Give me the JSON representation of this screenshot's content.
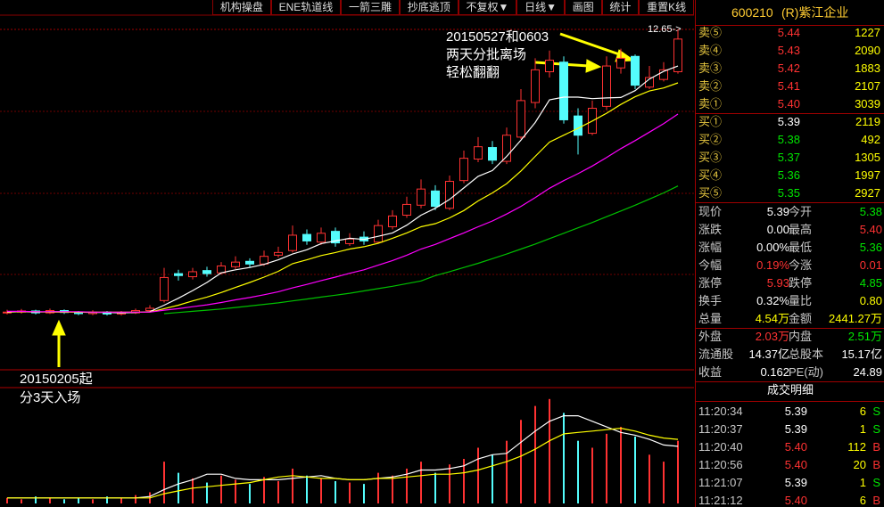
{
  "toolbar": [
    "机构操盘",
    "ENE轨道线",
    "一箭三雕",
    "抄底逃顶",
    "不复权▼",
    "日线▼",
    "画图",
    "统计",
    "重置K线"
  ],
  "kline": {
    "type": "candlestick",
    "ylim": [
      3.8,
      13.3
    ],
    "up_color": "#ff3232",
    "down_color": "#54fcfc",
    "open": [
      5.28,
      5.3,
      5.33,
      5.28,
      5.34,
      5.29,
      5.26,
      5.3,
      5.25,
      5.28,
      5.34,
      5.6,
      6.3,
      6.22,
      6.38,
      6.32,
      6.48,
      6.62,
      6.55,
      6.78,
      6.9,
      7.32,
      7.12,
      7.4,
      7.08,
      7.25,
      7.12,
      7.52,
      7.82,
      8.08,
      8.45,
      8.0,
      8.72,
      9.28,
      9.58,
      9.22,
      9.85,
      10.75,
      11.55,
      11.8,
      10.4,
      9.95,
      10.65,
      11.65,
      11.95,
      11.15,
      11.35,
      11.55
    ],
    "high": [
      5.36,
      5.38,
      5.36,
      5.39,
      5.37,
      5.33,
      5.35,
      5.33,
      5.33,
      5.39,
      5.48,
      6.45,
      6.4,
      6.45,
      6.48,
      6.6,
      6.75,
      6.7,
      6.9,
      7.0,
      7.55,
      7.45,
      7.5,
      7.5,
      7.35,
      7.4,
      7.7,
      7.95,
      8.3,
      8.75,
      8.6,
      8.85,
      9.5,
      9.85,
      9.75,
      10.1,
      11.1,
      11.9,
      12.1,
      11.95,
      10.6,
      10.8,
      11.95,
      12.15,
      12.0,
      11.7,
      11.8,
      12.65
    ],
    "low": [
      5.24,
      5.26,
      5.24,
      5.25,
      5.25,
      5.22,
      5.22,
      5.21,
      5.21,
      5.25,
      5.32,
      5.55,
      6.12,
      6.15,
      6.22,
      6.28,
      6.42,
      6.45,
      6.5,
      6.72,
      6.85,
      7.05,
      7.05,
      7.0,
      7.02,
      7.05,
      7.08,
      7.45,
      7.75,
      8.0,
      7.95,
      7.95,
      8.65,
      9.2,
      9.15,
      9.15,
      9.8,
      10.6,
      11.4,
      10.2,
      9.4,
      9.9,
      10.55,
      11.5,
      11.1,
      11.1,
      11.3,
      11.5
    ],
    "close": [
      5.3,
      5.33,
      5.28,
      5.34,
      5.29,
      5.26,
      5.3,
      5.25,
      5.28,
      5.34,
      5.4,
      6.2,
      6.25,
      6.35,
      6.3,
      6.5,
      6.6,
      6.55,
      6.75,
      6.85,
      7.3,
      7.15,
      7.35,
      7.1,
      7.2,
      7.15,
      7.55,
      7.8,
      8.1,
      8.5,
      8.05,
      8.7,
      9.3,
      9.6,
      9.25,
      9.9,
      10.8,
      11.6,
      11.85,
      10.3,
      9.9,
      10.6,
      11.7,
      11.9,
      11.2,
      11.4,
      11.6,
      12.4
    ],
    "ma": [
      {
        "color": "#ffffff",
        "values": [
          5.3,
          5.31,
          5.3,
          5.31,
          5.31,
          5.3,
          5.29,
          5.29,
          5.28,
          5.29,
          5.31,
          5.48,
          5.66,
          5.86,
          6.07,
          6.32,
          6.4,
          6.46,
          6.54,
          6.66,
          6.81,
          6.92,
          7.08,
          7.15,
          7.22,
          7.19,
          7.27,
          7.36,
          7.56,
          7.82,
          8.0,
          8.23,
          8.53,
          8.83,
          8.98,
          9.35,
          9.77,
          10.23,
          10.82,
          10.89,
          10.89,
          10.85,
          10.87,
          10.88,
          11.06,
          11.36,
          11.56,
          11.7
        ]
      },
      {
        "color": "#ffff00",
        "values": [
          5.31,
          5.31,
          5.31,
          5.3,
          5.3,
          5.3,
          5.3,
          5.3,
          5.3,
          5.3,
          5.3,
          5.39,
          5.48,
          5.59,
          5.69,
          5.81,
          5.94,
          6.07,
          6.21,
          6.36,
          6.56,
          6.66,
          6.77,
          6.85,
          6.94,
          7.0,
          7.09,
          7.22,
          7.36,
          7.52,
          7.6,
          7.75,
          7.94,
          8.19,
          8.4,
          8.64,
          8.97,
          9.35,
          9.72,
          9.9,
          10.08,
          10.27,
          10.47,
          10.7,
          10.9,
          11.05,
          11.13,
          11.26
        ]
      },
      {
        "color": "#ff00ff",
        "values": [
          5.32,
          5.32,
          5.31,
          5.31,
          5.31,
          5.31,
          5.3,
          5.3,
          5.3,
          5.3,
          5.3,
          5.35,
          5.39,
          5.44,
          5.49,
          5.55,
          5.62,
          5.68,
          5.75,
          5.83,
          5.93,
          6.02,
          6.12,
          6.21,
          6.31,
          6.4,
          6.52,
          6.64,
          6.78,
          6.94,
          7.06,
          7.21,
          7.36,
          7.52,
          7.67,
          7.85,
          8.05,
          8.28,
          8.52,
          8.72,
          8.9,
          9.1,
          9.32,
          9.55,
          9.76,
          9.98,
          10.2,
          10.45
        ]
      },
      {
        "color": "#00c000",
        "values": [
          null,
          null,
          null,
          null,
          null,
          null,
          null,
          null,
          null,
          null,
          null,
          5.26,
          5.29,
          5.32,
          5.35,
          5.38,
          5.42,
          5.46,
          5.5,
          5.54,
          5.59,
          5.64,
          5.69,
          5.74,
          5.79,
          5.85,
          5.91,
          5.97,
          6.04,
          6.11,
          6.25,
          6.35,
          6.46,
          6.57,
          6.69,
          6.81,
          6.94,
          7.07,
          7.21,
          7.35,
          7.49,
          7.63,
          7.78,
          7.93,
          8.08,
          8.24,
          8.4,
          8.58
        ]
      }
    ],
    "max_label": {
      "value": 12.65,
      "label": "12.65->"
    },
    "volume": {
      "ylim": [
        0,
        80
      ],
      "values": [
        4,
        3,
        5,
        4,
        3,
        4,
        3,
        5,
        4,
        6,
        8,
        30,
        22,
        18,
        15,
        20,
        17,
        14,
        19,
        16,
        25,
        20,
        18,
        16,
        15,
        14,
        22,
        20,
        25,
        30,
        22,
        28,
        32,
        40,
        35,
        45,
        60,
        70,
        75,
        65,
        45,
        40,
        50,
        55,
        48,
        35,
        30,
        45
      ],
      "ma": [
        {
          "color": "#ffffff",
          "values": [
            4,
            4,
            4,
            4,
            4,
            4,
            4,
            4,
            4,
            4,
            5,
            10,
            14,
            17,
            21,
            21,
            18,
            17,
            17,
            17,
            18,
            19,
            20,
            18,
            17,
            17,
            18,
            19,
            21,
            24,
            24,
            25,
            27,
            32,
            35,
            36,
            44,
            52,
            59,
            63,
            63,
            59,
            55,
            51,
            49,
            46,
            42,
            41
          ]
        },
        {
          "color": "#ffff00",
          "values": [
            4,
            4,
            4,
            4,
            4,
            4,
            4,
            4,
            4,
            4,
            4,
            7,
            9,
            11,
            12,
            13,
            14,
            15,
            17,
            19,
            20,
            19,
            18,
            18,
            17,
            17,
            18,
            18,
            19,
            20,
            21,
            21,
            22,
            24,
            27,
            30,
            34,
            39,
            45,
            50,
            51,
            52,
            53,
            54,
            52,
            49,
            47,
            46
          ]
        }
      ]
    }
  },
  "annotations": {
    "exit": [
      "20150527和0603",
      "两天分批离场",
      "轻松翻翻"
    ],
    "entry": [
      "20150205起",
      "分3天入场"
    ]
  },
  "quote": {
    "code": "600210",
    "name": "(R)紫江企业",
    "asks": [
      {
        "label": "卖⑤",
        "price": "5.44",
        "volume": "1227",
        "color": "#ff3232"
      },
      {
        "label": "卖④",
        "price": "5.43",
        "volume": "2090",
        "color": "#ff3232"
      },
      {
        "label": "卖③",
        "price": "5.42",
        "volume": "1883",
        "color": "#ff3232"
      },
      {
        "label": "卖②",
        "price": "5.41",
        "volume": "2107",
        "color": "#ff3232"
      },
      {
        "label": "卖①",
        "price": "5.40",
        "volume": "3039",
        "color": "#ff3232"
      }
    ],
    "bids": [
      {
        "label": "买①",
        "price": "5.39",
        "volume": "2119",
        "color": "#ffffff"
      },
      {
        "label": "买②",
        "price": "5.38",
        "volume": "492",
        "color": "#00e600"
      },
      {
        "label": "买③",
        "price": "5.37",
        "volume": "1305",
        "color": "#00e600"
      },
      {
        "label": "买④",
        "price": "5.36",
        "volume": "1997",
        "color": "#00e600"
      },
      {
        "label": "买⑤",
        "price": "5.35",
        "volume": "2927",
        "color": "#00e600"
      }
    ],
    "stats": [
      [
        {
          "label": "现价",
          "value": "5.39",
          "color": "#ffffff"
        },
        {
          "label": "今开",
          "value": "5.38",
          "color": "#00e600"
        }
      ],
      [
        {
          "label": "涨跌",
          "value": "0.00",
          "color": "#ffffff"
        },
        {
          "label": "最高",
          "value": "5.40",
          "color": "#ff3232"
        }
      ],
      [
        {
          "label": "涨幅",
          "value": "0.00%",
          "color": "#ffffff"
        },
        {
          "label": "最低",
          "value": "5.36",
          "color": "#00e600"
        }
      ],
      [
        {
          "label": "今幅",
          "value": "0.19%",
          "color": "#ff3232"
        },
        {
          "label": "今涨",
          "value": "0.01",
          "color": "#ff3232"
        }
      ],
      [
        {
          "label": "涨停",
          "value": "5.93",
          "color": "#ff3232"
        },
        {
          "label": "跌停",
          "value": "4.85",
          "color": "#00e600"
        }
      ],
      [
        {
          "label": "换手",
          "value": "0.32%",
          "color": "#ffffff"
        },
        {
          "label": "量比",
          "value": "0.80",
          "color": "#ffff00"
        }
      ],
      [
        {
          "label": "总量",
          "value": "4.54万",
          "color": "#ffff00"
        },
        {
          "label": "金额",
          "value": "2441.27万",
          "color": "#ffff00"
        }
      ],
      [
        {
          "label": "外盘",
          "value": "2.03万",
          "color": "#ff3232"
        },
        {
          "label": "内盘",
          "value": "2.51万",
          "color": "#00e600"
        }
      ],
      [
        {
          "label": "流通股",
          "value": "14.37亿",
          "color": "#ffffff"
        },
        {
          "label": "总股本",
          "value": "15.17亿",
          "color": "#ffffff"
        }
      ],
      [
        {
          "label": "收益",
          "value": "0.162",
          "color": "#ffffff"
        },
        {
          "label": "PE(动)",
          "value": "24.89",
          "color": "#ffffff"
        }
      ]
    ],
    "trades_title": "成交明细",
    "trades": [
      {
        "time": "11:20:34",
        "price": "5.39",
        "price_color": "#ffffff",
        "volume": "6",
        "side": "S",
        "side_color": "#00e600"
      },
      {
        "time": "11:20:37",
        "price": "5.39",
        "price_color": "#ffffff",
        "volume": "1",
        "side": "S",
        "side_color": "#00e600"
      },
      {
        "time": "11:20:40",
        "price": "5.40",
        "price_color": "#ff3232",
        "volume": "112",
        "side": "B",
        "side_color": "#ff3232"
      },
      {
        "time": "11:20:56",
        "price": "5.40",
        "price_color": "#ff3232",
        "volume": "20",
        "side": "B",
        "side_color": "#ff3232"
      },
      {
        "time": "11:21:07",
        "price": "5.39",
        "price_color": "#ffffff",
        "volume": "1",
        "side": "S",
        "side_color": "#00e600"
      },
      {
        "time": "11:21:12",
        "price": "5.40",
        "price_color": "#ff3232",
        "volume": "6",
        "side": "B",
        "side_color": "#ff3232"
      }
    ]
  }
}
